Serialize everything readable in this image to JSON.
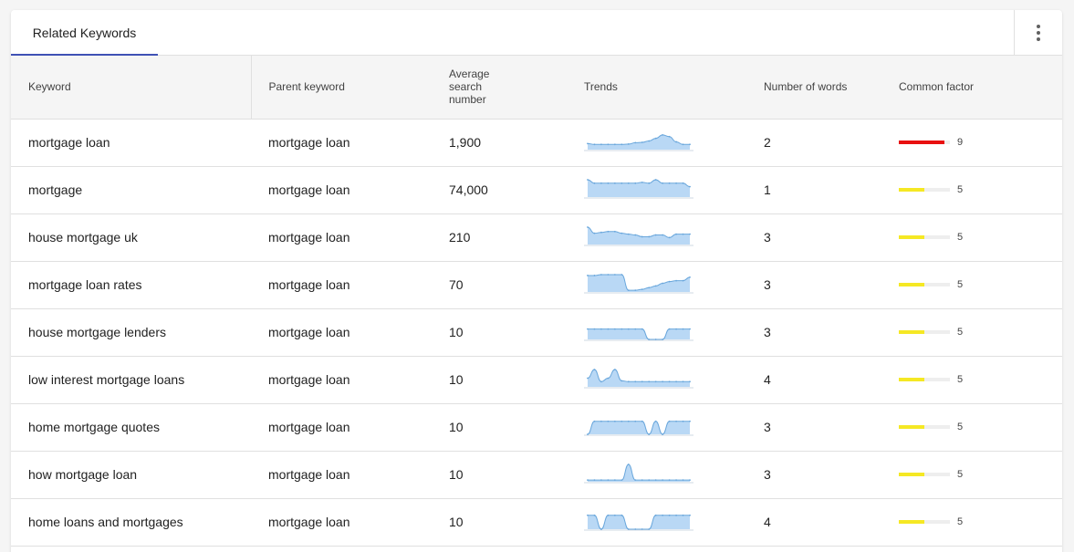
{
  "tabs": [
    {
      "label": "Related Keywords",
      "active": true
    }
  ],
  "table": {
    "columns": [
      "Keyword",
      "Parent keyword",
      "Average\nsearch\nnumber",
      "Trends",
      "Number of words",
      "Common factor"
    ],
    "factor_max": 10,
    "colors": {
      "high": "#e81010",
      "mid": "#f5e824",
      "spark_fill": "#b9d8f5",
      "spark_line": "#6aa7dc"
    },
    "rows": [
      {
        "keyword": "mortgage loan",
        "parent": "mortgage loan",
        "avg": "1,900",
        "words": "2",
        "factor": 9,
        "trend": [
          0.35,
          0.3,
          0.3,
          0.3,
          0.3,
          0.3,
          0.32,
          0.4,
          0.42,
          0.5,
          0.65,
          0.85,
          0.75,
          0.45,
          0.3,
          0.3
        ]
      },
      {
        "keyword": "mortgage",
        "parent": "mortgage loan",
        "avg": "74,000",
        "words": "1",
        "factor": 5,
        "trend": [
          1.0,
          0.8,
          0.8,
          0.8,
          0.8,
          0.8,
          0.8,
          0.8,
          0.85,
          0.8,
          1.0,
          0.8,
          0.8,
          0.8,
          0.8,
          0.6
        ]
      },
      {
        "keyword": "house mortgage uk",
        "parent": "mortgage loan",
        "avg": "210",
        "words": "3",
        "factor": 5,
        "trend": [
          1.0,
          0.65,
          0.7,
          0.75,
          0.75,
          0.65,
          0.6,
          0.55,
          0.45,
          0.45,
          0.55,
          0.55,
          0.4,
          0.6,
          0.6,
          0.6
        ]
      },
      {
        "keyword": "mortgage loan rates",
        "parent": "mortgage loan",
        "avg": "70",
        "words": "3",
        "factor": 5,
        "trend": [
          0.95,
          0.95,
          1.0,
          1.0,
          1.0,
          1.0,
          0.1,
          0.1,
          0.15,
          0.25,
          0.35,
          0.5,
          0.6,
          0.65,
          0.65,
          0.85
        ]
      },
      {
        "keyword": "house mortgage lenders",
        "parent": "mortgage loan",
        "avg": "10",
        "words": "3",
        "factor": 5,
        "trend": [
          0.6,
          0.6,
          0.6,
          0.6,
          0.6,
          0.6,
          0.6,
          0.6,
          0.6,
          0.0,
          0.0,
          0.0,
          0.6,
          0.6,
          0.6,
          0.6
        ]
      },
      {
        "keyword": "low interest mortgage loans",
        "parent": "mortgage loan",
        "avg": "10",
        "words": "4",
        "factor": 5,
        "trend": [
          0.5,
          1.0,
          0.3,
          0.5,
          1.0,
          0.35,
          0.3,
          0.3,
          0.3,
          0.3,
          0.3,
          0.3,
          0.3,
          0.3,
          0.3,
          0.3
        ]
      },
      {
        "keyword": "home mortgage quotes",
        "parent": "mortgage loan",
        "avg": "10",
        "words": "3",
        "factor": 5,
        "trend": [
          0.0,
          0.75,
          0.75,
          0.75,
          0.75,
          0.75,
          0.75,
          0.75,
          0.75,
          0.0,
          0.75,
          0.0,
          0.75,
          0.75,
          0.75,
          0.75
        ]
      },
      {
        "keyword": "how mortgage loan",
        "parent": "mortgage loan",
        "avg": "10",
        "words": "3",
        "factor": 5,
        "trend": [
          0.1,
          0.1,
          0.1,
          0.1,
          0.1,
          0.1,
          1.0,
          0.1,
          0.1,
          0.1,
          0.1,
          0.1,
          0.1,
          0.1,
          0.1,
          0.1
        ]
      },
      {
        "keyword": "home loans and mortgages",
        "parent": "mortgage loan",
        "avg": "10",
        "words": "4",
        "factor": 5,
        "trend": [
          0.8,
          0.8,
          0.0,
          0.8,
          0.8,
          0.8,
          0.0,
          0.0,
          0.0,
          0.0,
          0.8,
          0.8,
          0.8,
          0.8,
          0.8,
          0.8
        ]
      }
    ]
  }
}
